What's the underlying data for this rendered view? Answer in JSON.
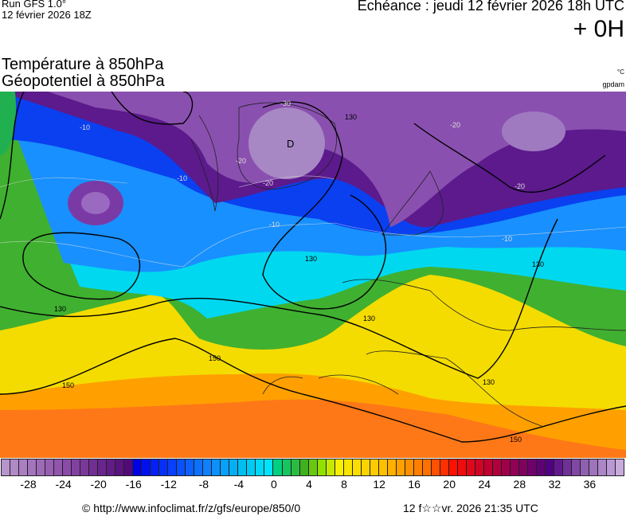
{
  "header": {
    "run": "Run GFS 1.0°",
    "run_date": "12 février 2026 18Z",
    "echeance": "Echéance : jeudi 12 février 2026 18h UTC",
    "lead": "+ 0H",
    "title_temperature": "Température à 850hPa",
    "title_geopotential": "Géopotentiel à 850hPa",
    "unit_temperature": "°C",
    "unit_geopotential": "gpdam"
  },
  "map": {
    "field": "temperature-850hPa",
    "contour_labels": [
      "130",
      "130",
      "130",
      "130",
      "130",
      "130",
      "150",
      "150",
      "150"
    ],
    "isotherm_labels": [
      "-10",
      "-10",
      "-10",
      "-10",
      "-20",
      "-20",
      "-20",
      "-30",
      "-20"
    ],
    "pressure_symbols": [
      "D"
    ]
  },
  "colorbar": {
    "min": -31,
    "max": 40,
    "tick_labels": [
      "-28",
      "-24",
      "-20",
      "-16",
      "-12",
      "-8",
      "-4",
      "0",
      "4",
      "8",
      "12",
      "16",
      "20",
      "24",
      "28",
      "32",
      "36"
    ],
    "stops": [
      [
        -31,
        "#b894cc"
      ],
      [
        -24,
        "#8a4aa8"
      ],
      [
        -17,
        "#520a78"
      ],
      [
        -16,
        "#0000e8"
      ],
      [
        -12,
        "#0840ff"
      ],
      [
        -8,
        "#1080ff"
      ],
      [
        -4,
        "#00bff0"
      ],
      [
        -1,
        "#00e4ff"
      ],
      [
        0,
        "#00d080"
      ],
      [
        3,
        "#40b020"
      ],
      [
        5,
        "#90e000"
      ],
      [
        7,
        "#f8f000"
      ],
      [
        12,
        "#ffc000"
      ],
      [
        17,
        "#ff7000"
      ],
      [
        20,
        "#ff1000"
      ],
      [
        24,
        "#c00030"
      ],
      [
        28,
        "#800060"
      ],
      [
        31,
        "#500080"
      ],
      [
        35,
        "#9060b0"
      ],
      [
        39,
        "#c8aadc"
      ]
    ]
  },
  "footer": {
    "copyright": "© http://www.infoclimat.fr/z/gfs/europe/850/0",
    "generated": "12 f☆☆vr. 2026 21:35 UTC"
  }
}
